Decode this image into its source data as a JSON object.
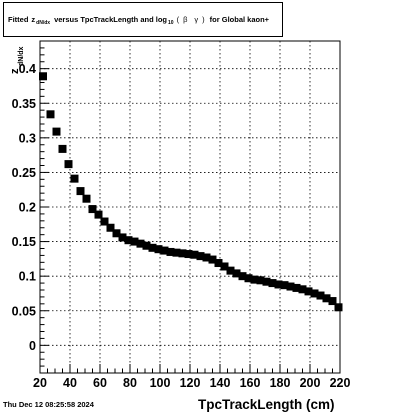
{
  "title": {
    "part1": "Fitted",
    "z": "z",
    "z_sub": "dN/dx",
    "part2": "versus TpcTrackLength and log",
    "log_sub": "10",
    "paren_open": "(",
    "beta": "β",
    "gamma": "γ",
    "paren_close": ")",
    "part3": "for Global kaon+"
  },
  "timestamp": "Thu Dec 12 08:25:58 2024",
  "chart_data": {
    "type": "scatter",
    "title": "Fitted z_dN/dx versus TpcTrackLength and log10(βγ) for Global kaon+",
    "xlabel": "TpcTrackLength (cm)",
    "ylabel": "z_dN/dx",
    "xlim": [
      20,
      220
    ],
    "ylim": [
      -0.04,
      0.44
    ],
    "grid": true,
    "marker": "filled-square",
    "marker_color": "#000000",
    "x_ticks": [
      20,
      40,
      60,
      80,
      100,
      120,
      140,
      160,
      180,
      200,
      220
    ],
    "x_tick_labels": [
      "20",
      "40",
      "60",
      "80",
      "100",
      "120",
      "140",
      "160",
      "180",
      "200",
      "220"
    ],
    "y_ticks": [
      0,
      0.05,
      0.1,
      0.15,
      0.2,
      0.25,
      0.3,
      0.35,
      0.4
    ],
    "y_tick_labels": [
      "0",
      "0.05",
      "0.1",
      "0.15",
      "0.2",
      "0.25",
      "0.3",
      "0.35",
      "0.4"
    ],
    "x": [
      22,
      27,
      31,
      35,
      39,
      43,
      47,
      51,
      55,
      59,
      63,
      67,
      71,
      75,
      79,
      83,
      87,
      91,
      95,
      99,
      103,
      107,
      111,
      115,
      119,
      123,
      127,
      131,
      135,
      139,
      143,
      147,
      151,
      155,
      159,
      163,
      167,
      171,
      175,
      179,
      183,
      187,
      191,
      195,
      199,
      203,
      207,
      211,
      215,
      219
    ],
    "y": [
      0.389,
      0.334,
      0.309,
      0.284,
      0.262,
      0.241,
      0.223,
      0.212,
      0.197,
      0.189,
      0.179,
      0.17,
      0.162,
      0.156,
      0.152,
      0.15,
      0.147,
      0.144,
      0.141,
      0.139,
      0.137,
      0.135,
      0.134,
      0.133,
      0.132,
      0.131,
      0.129,
      0.127,
      0.124,
      0.119,
      0.114,
      0.108,
      0.104,
      0.1,
      0.097,
      0.095,
      0.094,
      0.092,
      0.09,
      0.088,
      0.087,
      0.085,
      0.083,
      0.081,
      0.078,
      0.075,
      0.072,
      0.068,
      0.064,
      0.055
    ]
  }
}
